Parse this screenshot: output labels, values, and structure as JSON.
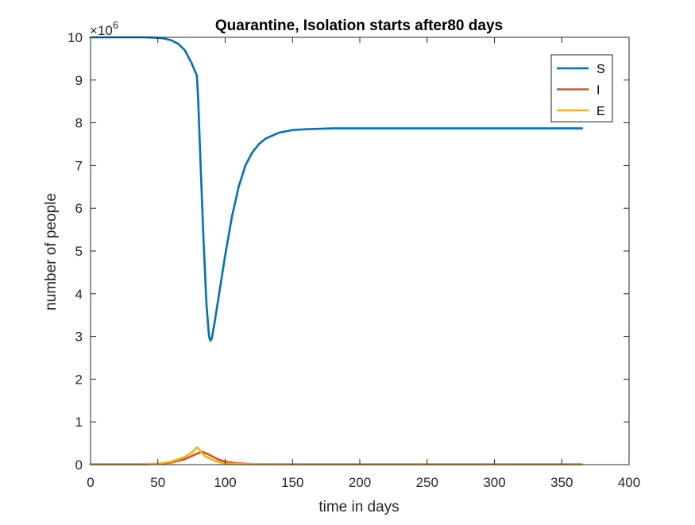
{
  "chart_data": {
    "type": "line",
    "title": "Quarantine, Isolation starts after80   days",
    "xlabel": "time in days",
    "ylabel": "number of people",
    "y_multiplier_label": "×10",
    "y_multiplier_exponent": "6",
    "xlim": [
      0,
      400
    ],
    "ylim": [
      0,
      10
    ],
    "xticks": [
      0,
      50,
      100,
      150,
      200,
      250,
      300,
      350,
      400
    ],
    "yticks": [
      0,
      1,
      2,
      3,
      4,
      5,
      6,
      7,
      8,
      9,
      10
    ],
    "grid": false,
    "legend_location": "top-right",
    "units_note": "values in millions of people (×10^6)",
    "series": [
      {
        "name": "S",
        "color": "#0072BD",
        "points": [
          [
            0,
            10.0
          ],
          [
            20,
            10.0
          ],
          [
            40,
            10.0
          ],
          [
            50,
            9.99
          ],
          [
            55,
            9.97
          ],
          [
            60,
            9.93
          ],
          [
            65,
            9.85
          ],
          [
            70,
            9.7
          ],
          [
            75,
            9.4
          ],
          [
            79,
            9.1
          ],
          [
            80,
            8.5
          ],
          [
            82,
            6.8
          ],
          [
            84,
            5.2
          ],
          [
            86,
            3.8
          ],
          [
            88,
            3.0
          ],
          [
            89,
            2.9
          ],
          [
            90,
            2.95
          ],
          [
            92,
            3.3
          ],
          [
            95,
            3.9
          ],
          [
            100,
            4.9
          ],
          [
            105,
            5.8
          ],
          [
            110,
            6.5
          ],
          [
            115,
            7.0
          ],
          [
            120,
            7.3
          ],
          [
            125,
            7.5
          ],
          [
            130,
            7.63
          ],
          [
            140,
            7.77
          ],
          [
            150,
            7.83
          ],
          [
            160,
            7.85
          ],
          [
            180,
            7.87
          ],
          [
            200,
            7.87
          ],
          [
            250,
            7.87
          ],
          [
            300,
            7.87
          ],
          [
            365,
            7.87
          ]
        ]
      },
      {
        "name": "I",
        "color": "#D95319",
        "points": [
          [
            0,
            0.01
          ],
          [
            40,
            0.01
          ],
          [
            50,
            0.02
          ],
          [
            60,
            0.05
          ],
          [
            70,
            0.13
          ],
          [
            75,
            0.2
          ],
          [
            80,
            0.27
          ],
          [
            83,
            0.3
          ],
          [
            87,
            0.25
          ],
          [
            90,
            0.2
          ],
          [
            95,
            0.12
          ],
          [
            100,
            0.07
          ],
          [
            110,
            0.03
          ],
          [
            120,
            0.015
          ],
          [
            150,
            0.01
          ],
          [
            365,
            0.01
          ]
        ]
      },
      {
        "name": "E",
        "color": "#EDB120",
        "points": [
          [
            0,
            0.01
          ],
          [
            40,
            0.01
          ],
          [
            50,
            0.02
          ],
          [
            60,
            0.07
          ],
          [
            70,
            0.18
          ],
          [
            75,
            0.28
          ],
          [
            79,
            0.4
          ],
          [
            80,
            0.38
          ],
          [
            82,
            0.3
          ],
          [
            85,
            0.2
          ],
          [
            90,
            0.12
          ],
          [
            95,
            0.06
          ],
          [
            100,
            0.03
          ],
          [
            110,
            0.015
          ],
          [
            120,
            0.01
          ],
          [
            365,
            0.01
          ]
        ]
      }
    ]
  }
}
